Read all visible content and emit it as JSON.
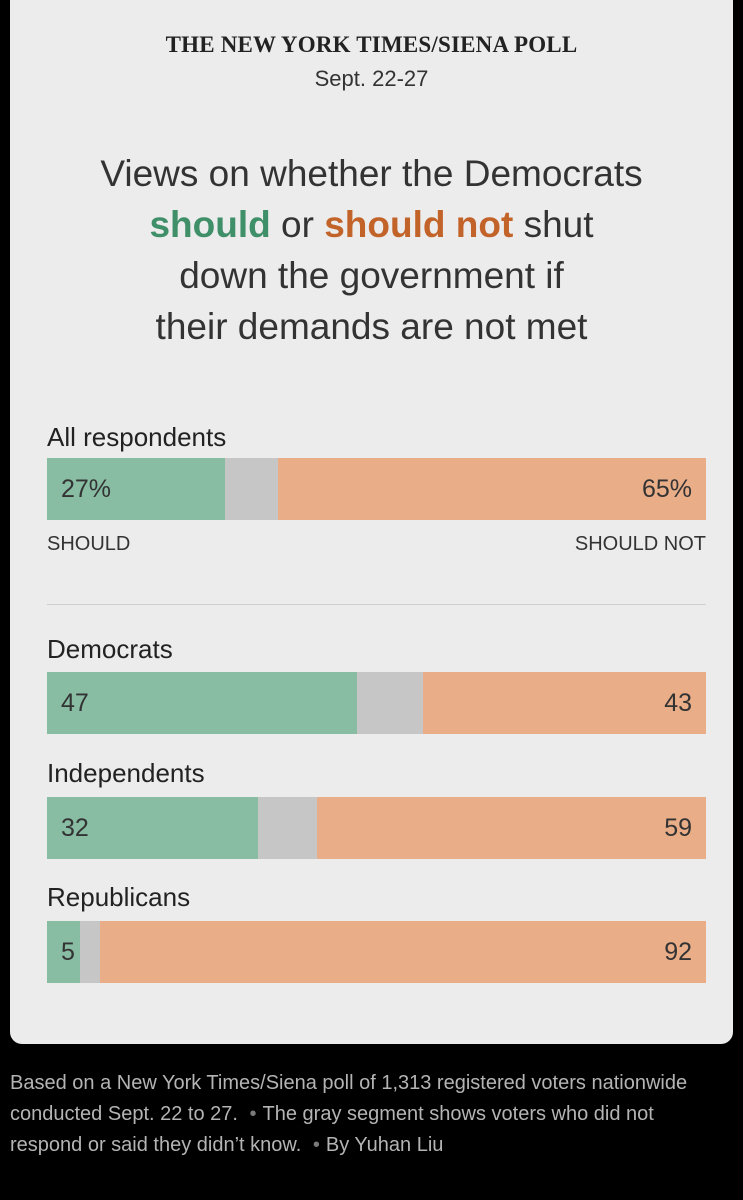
{
  "header": {
    "masthead": "THE NEW YORK TIMES/SIENA POLL",
    "dates": "Sept. 22-27"
  },
  "title": {
    "line1": "Views on whether the Democrats",
    "should": "should",
    "or": " or ",
    "should_not": "should not",
    "shut": " shut",
    "line3": "down the government if",
    "line4": "their demands are not met"
  },
  "colors": {
    "should": "#88bda4",
    "unsure": "#c6c6c6",
    "should_not": "#e9ad88",
    "should_text": "#3f8f68",
    "should_not_text": "#c2632a"
  },
  "chart_data": {
    "type": "bar",
    "orientation": "horizontal-stacked-100",
    "series": [
      {
        "name": "SHOULD",
        "key": "should"
      },
      {
        "name": "",
        "key": "unsure"
      },
      {
        "name": "SHOULD NOT",
        "key": "should_not"
      }
    ],
    "groups": [
      {
        "label": "All respondents",
        "should": 27,
        "should_not": 65,
        "unsure": 8,
        "should_label": "27%",
        "should_not_label": "65%"
      },
      {
        "label": "Democrats",
        "should": 47,
        "should_not": 43,
        "unsure": 10,
        "should_label": "47",
        "should_not_label": "43"
      },
      {
        "label": "Independents",
        "should": 32,
        "should_not": 59,
        "unsure": 9,
        "should_label": "32",
        "should_not_label": "59"
      },
      {
        "label": "Republicans",
        "should": 5,
        "should_not": 92,
        "unsure": 3,
        "should_label": "5",
        "should_not_label": "92"
      }
    ],
    "axis_labels": {
      "left": "SHOULD",
      "right": "SHOULD NOT"
    }
  },
  "footnote": {
    "text1": "Based on a New York Times/Siena poll of 1,313 registered voters nationwide conducted Sept. 22 to 27.",
    "dot": "•",
    "text2": "The gray segment shows voters who did not respond or said they didn’t know.",
    "text3": "By Yuhan Liu"
  }
}
